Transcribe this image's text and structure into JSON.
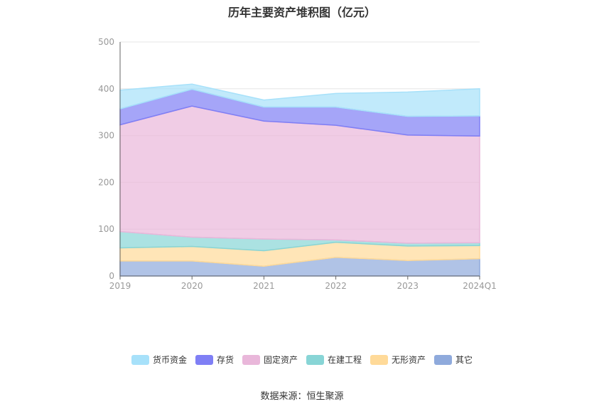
{
  "title": "历年主要资产堆积图（亿元）",
  "source": "数据来源：恒生聚源",
  "chart_data": {
    "type": "area",
    "stacked": true,
    "categories": [
      "2019",
      "2020",
      "2021",
      "2022",
      "2023",
      "2024Q1"
    ],
    "ylim": [
      0,
      500
    ],
    "yticks": [
      0,
      100,
      200,
      300,
      400,
      500
    ],
    "grid": true,
    "legend_position": "bottom",
    "series": [
      {
        "name": "其它",
        "color": "#8FAADC",
        "values": [
          32,
          32,
          21,
          40,
          33,
          37
        ]
      },
      {
        "name": "无形资产",
        "color": "#FFDA99",
        "values": [
          28,
          31,
          33,
          32,
          31,
          28
        ]
      },
      {
        "name": "在建工程",
        "color": "#88D5D6",
        "values": [
          35,
          20,
          25,
          5,
          6,
          6
        ]
      },
      {
        "name": "固定资产",
        "color": "#E9B7DA",
        "values": [
          228,
          280,
          252,
          245,
          231,
          228
        ]
      },
      {
        "name": "存货",
        "color": "#7F7FF5",
        "values": [
          34,
          36,
          30,
          39,
          40,
          43
        ]
      },
      {
        "name": "货币资金",
        "color": "#A7E1FA",
        "values": [
          40,
          11,
          15,
          29,
          52,
          58
        ]
      }
    ],
    "legend_order": [
      "货币资金",
      "存货",
      "固定资产",
      "在建工程",
      "无形资产",
      "其它"
    ]
  }
}
